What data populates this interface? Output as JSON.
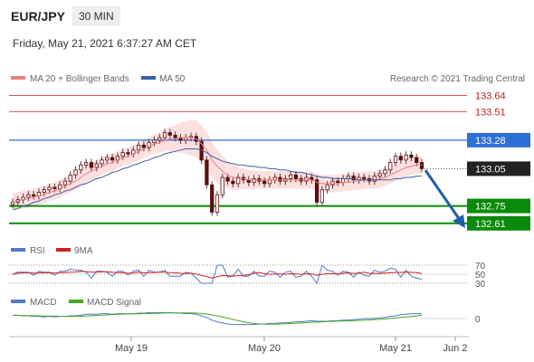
{
  "header": {
    "pair": "EUR/JPY",
    "timeframe": "30 MIN",
    "datetime": "Friday, May 21, 2021 6:37:27 AM CET"
  },
  "legend": {
    "ma20": "MA 20 + Bollinger Bands",
    "ma50": "MA 50",
    "copyright": "Research © 2021 Trading Central",
    "rsi": "RSI",
    "rsi_ma": "9MA",
    "macd": "MACD",
    "macd_signal": "MACD Signal"
  },
  "colors": {
    "candle_up": "#5a0e0e",
    "ma20": "#e88080",
    "bollinger_fill": "#fbd8d8",
    "ma50": "#3a5fa0",
    "resistance": "#e05050",
    "pivot": "#2e6fd6",
    "support": "#0a8a0a",
    "arrow": "#1f5fa8"
  },
  "chart_data": {
    "type": "candlestick",
    "price_levels": [
      {
        "label": "133.64",
        "value": 133.64,
        "kind": "resistance"
      },
      {
        "label": "133.51",
        "value": 133.51,
        "kind": "resistance"
      },
      {
        "label": "133.28",
        "value": 133.28,
        "kind": "pivot"
      },
      {
        "label": "133.05",
        "value": 133.05,
        "kind": "current"
      },
      {
        "label": "132.75",
        "value": 132.75,
        "kind": "support"
      },
      {
        "label": "132.61",
        "value": 132.61,
        "kind": "support"
      }
    ],
    "x_ticks": [
      "May 19",
      "May 20",
      "May 21",
      "Jun 2"
    ],
    "rsi_ticks": [
      "70",
      "50",
      "30"
    ],
    "macd_ticks": [
      "0"
    ],
    "ylim": [
      132.55,
      133.68
    ],
    "close": [
      132.78,
      132.8,
      132.82,
      132.84,
      132.83,
      132.86,
      132.88,
      132.9,
      132.89,
      132.92,
      132.95,
      133.0,
      133.04,
      133.08,
      133.1,
      133.06,
      133.09,
      133.12,
      133.14,
      133.12,
      133.15,
      133.18,
      133.17,
      133.2,
      133.24,
      133.22,
      133.26,
      133.28,
      133.3,
      133.34,
      133.32,
      133.3,
      133.28,
      133.3,
      133.31,
      133.27,
      133.12,
      132.92,
      132.7,
      132.84,
      132.98,
      132.95,
      132.93,
      132.98,
      132.96,
      132.94,
      132.97,
      132.95,
      132.93,
      132.96,
      132.98,
      132.95,
      132.97,
      133.0,
      132.97,
      132.95,
      132.98,
      132.96,
      132.78,
      132.88,
      132.92,
      132.95,
      132.94,
      132.97,
      132.99,
      132.96,
      132.98,
      132.97,
      132.95,
      132.99,
      133.01,
      133.04,
      133.1,
      133.15,
      133.12,
      133.16,
      133.14,
      133.1,
      133.05
    ],
    "ma20": [
      132.78,
      132.79,
      132.8,
      132.81,
      132.82,
      132.83,
      132.84,
      132.86,
      132.87,
      132.89,
      132.91,
      132.93,
      132.95,
      132.98,
      133.01,
      133.03,
      133.05,
      133.07,
      133.09,
      133.1,
      133.12,
      133.14,
      133.15,
      133.17,
      133.19,
      133.21,
      133.23,
      133.25,
      133.26,
      133.28,
      133.29,
      133.29,
      133.3,
      133.3,
      133.3,
      133.29,
      133.25,
      133.2,
      133.12,
      133.07,
      133.03,
      133.0,
      132.98,
      132.97,
      132.97,
      132.96,
      132.96,
      132.96,
      132.96,
      132.96,
      132.96,
      132.96,
      132.96,
      132.96,
      132.96,
      132.96,
      132.96,
      132.96,
      132.94,
      132.93,
      132.93,
      132.93,
      132.93,
      132.94,
      132.94,
      132.95,
      132.95,
      132.96,
      132.96,
      132.96,
      132.97,
      132.98,
      133.0,
      133.02,
      133.04,
      133.06,
      133.07,
      133.08,
      133.08
    ],
    "ma50": [
      132.72,
      132.73,
      132.75,
      132.76,
      132.78,
      132.79,
      132.81,
      132.82,
      132.84,
      132.85,
      132.87,
      132.88,
      132.9,
      132.92,
      132.93,
      132.95,
      132.97,
      132.98,
      133.0,
      133.02,
      133.03,
      133.05,
      133.06,
      133.08,
      133.09,
      133.11,
      133.12,
      133.14,
      133.15,
      133.17,
      133.18,
      133.19,
      133.2,
      133.21,
      133.21,
      133.21,
      133.2,
      133.18,
      133.15,
      133.13,
      133.11,
      133.1,
      133.09,
      133.08,
      133.08,
      133.07,
      133.07,
      133.06,
      133.06,
      133.05,
      133.05,
      133.04,
      133.04,
      133.03,
      133.02,
      133.02,
      133.01,
      133.0,
      132.99,
      132.98,
      132.98,
      132.97,
      132.97,
      132.97,
      132.97,
      132.97,
      132.96,
      132.96,
      132.96,
      132.96,
      132.96,
      132.96,
      132.96,
      132.97,
      132.97,
      132.98,
      132.98,
      132.99,
      132.99
    ]
  }
}
